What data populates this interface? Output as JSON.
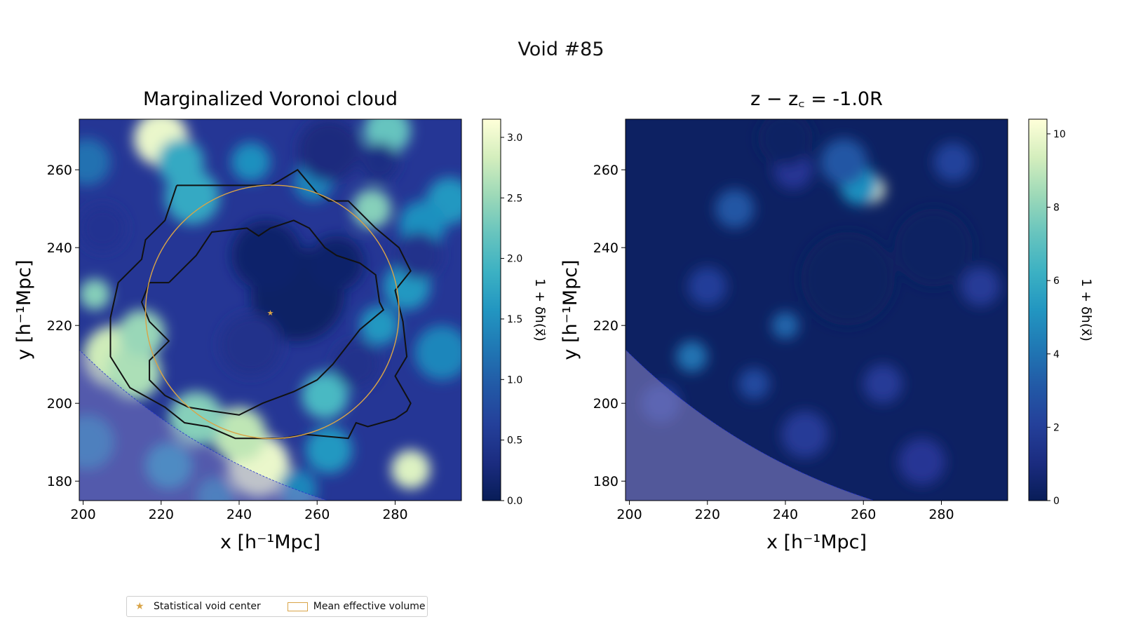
{
  "figure": {
    "suptitle": "Void #85"
  },
  "colors": {
    "contour": "#111111",
    "circle": "#d9a447",
    "center_star": "#d9a447",
    "boundary_dashed": "#2233cc",
    "colormap": "YlGnBu_r"
  },
  "chart_data": [
    {
      "type": "heatmap",
      "title": "Marginalized Voronoi cloud",
      "xlabel": "x [h⁻¹Mpc]",
      "ylabel": "y [h⁻¹Mpc]",
      "xlim": [
        199,
        297
      ],
      "ylim": [
        175,
        273
      ],
      "xticks": [
        200,
        220,
        240,
        260,
        280
      ],
      "yticks": [
        180,
        200,
        220,
        240,
        260
      ],
      "xtick_labels": [
        "200",
        "220",
        "240",
        "260",
        "280"
      ],
      "ytick_labels": [
        "180",
        "200",
        "220",
        "240",
        "260"
      ],
      "colorbar": {
        "label": "1 + δh(x⃗)",
        "range": [
          0.0,
          3.15
        ],
        "ticks": [
          0.0,
          0.5,
          1.0,
          1.5,
          2.0,
          2.5,
          3.0
        ],
        "tick_labels": [
          "0.0",
          "0.5",
          "1.0",
          "1.5",
          "2.0",
          "2.5",
          "3.0"
        ]
      },
      "features": [
        {
          "x": 220,
          "y": 268,
          "value": 3.0,
          "r": 7
        },
        {
          "x": 208,
          "y": 212,
          "value": 2.8,
          "r": 8
        },
        {
          "x": 213,
          "y": 208,
          "value": 2.6,
          "r": 7
        },
        {
          "x": 215,
          "y": 218,
          "value": 2.5,
          "r": 6
        },
        {
          "x": 203,
          "y": 228,
          "value": 2.4,
          "r": 4
        },
        {
          "x": 245,
          "y": 184,
          "value": 3.0,
          "r": 8
        },
        {
          "x": 240,
          "y": 192,
          "value": 2.7,
          "r": 7
        },
        {
          "x": 229,
          "y": 196,
          "value": 2.4,
          "r": 7
        },
        {
          "x": 284,
          "y": 183,
          "value": 2.9,
          "r": 5
        },
        {
          "x": 274,
          "y": 250,
          "value": 2.4,
          "r": 5
        },
        {
          "x": 278,
          "y": 270,
          "value": 2.2,
          "r": 6
        },
        {
          "x": 262,
          "y": 202,
          "value": 2.0,
          "r": 6
        },
        {
          "x": 228,
          "y": 253,
          "value": 1.8,
          "r": 7
        },
        {
          "x": 225,
          "y": 262,
          "value": 1.8,
          "r": 6
        },
        {
          "x": 283,
          "y": 230,
          "value": 1.6,
          "r": 6
        },
        {
          "x": 292,
          "y": 213,
          "value": 1.4,
          "r": 7
        },
        {
          "x": 294,
          "y": 252,
          "value": 1.6,
          "r": 6
        },
        {
          "x": 287,
          "y": 246,
          "value": 1.5,
          "r": 6
        },
        {
          "x": 259,
          "y": 257,
          "value": 1.4,
          "r": 5
        },
        {
          "x": 276,
          "y": 220,
          "value": 1.6,
          "r": 5
        },
        {
          "x": 201,
          "y": 190,
          "value": 1.3,
          "r": 7
        },
        {
          "x": 222,
          "y": 184,
          "value": 1.5,
          "r": 6
        },
        {
          "x": 263,
          "y": 188,
          "value": 1.6,
          "r": 6
        },
        {
          "x": 243,
          "y": 262,
          "value": 1.5,
          "r": 5
        },
        {
          "x": 201,
          "y": 262,
          "value": 1.2,
          "r": 6
        },
        {
          "x": 255,
          "y": 178,
          "value": 1.4,
          "r": 5
        },
        {
          "x": 234,
          "y": 176,
          "value": 1.3,
          "r": 5
        },
        {
          "x": 255,
          "y": 228,
          "value": 0.1,
          "r": 12
        },
        {
          "x": 247,
          "y": 238,
          "value": 0.15,
          "r": 9
        },
        {
          "x": 265,
          "y": 236,
          "value": 0.15,
          "r": 7
        },
        {
          "x": 263,
          "y": 265,
          "value": 0.3,
          "r": 8
        },
        {
          "x": 276,
          "y": 262,
          "value": 0.35,
          "r": 5
        },
        {
          "x": 243,
          "y": 215,
          "value": 0.4,
          "r": 8
        },
        {
          "x": 270,
          "y": 210,
          "value": 0.4,
          "r": 6
        },
        {
          "x": 286,
          "y": 238,
          "value": 0.4,
          "r": 6
        },
        {
          "x": 205,
          "y": 245,
          "value": 0.45,
          "r": 6
        }
      ],
      "inner_contour": [
        [
          222,
          231
        ],
        [
          229,
          238
        ],
        [
          233,
          244
        ],
        [
          242,
          245
        ],
        [
          245,
          243
        ],
        [
          248,
          245
        ],
        [
          254,
          247
        ],
        [
          258,
          245
        ],
        [
          262,
          240
        ],
        [
          265,
          238
        ],
        [
          271,
          236
        ],
        [
          275,
          233
        ],
        [
          276,
          226
        ],
        [
          277,
          224
        ],
        [
          271,
          219
        ],
        [
          264,
          210
        ],
        [
          260,
          206
        ],
        [
          254,
          203
        ],
        [
          246,
          200
        ],
        [
          240,
          197
        ],
        [
          233,
          198
        ],
        [
          227,
          199
        ],
        [
          221,
          202
        ],
        [
          217,
          206
        ],
        [
          217,
          211
        ],
        [
          222,
          216
        ],
        [
          217,
          221
        ],
        [
          215,
          226
        ],
        [
          217,
          231
        ],
        [
          222,
          231
        ]
      ],
      "outer_contour": [
        [
          224,
          256
        ],
        [
          228,
          256
        ],
        [
          236,
          256
        ],
        [
          248,
          256
        ],
        [
          250,
          257
        ],
        [
          255,
          260
        ],
        [
          260,
          254
        ],
        [
          263,
          252
        ],
        [
          268,
          252
        ],
        [
          275,
          245
        ],
        [
          281,
          240
        ],
        [
          284,
          234
        ],
        [
          280,
          229
        ],
        [
          282,
          221
        ],
        [
          283,
          212
        ],
        [
          280,
          207
        ],
        [
          284,
          200
        ],
        [
          283,
          198
        ],
        [
          280,
          196
        ],
        [
          273,
          194
        ],
        [
          270,
          195
        ],
        [
          268,
          191
        ],
        [
          257,
          192
        ],
        [
          251,
          191
        ],
        [
          239,
          191
        ],
        [
          232,
          194
        ],
        [
          226,
          195
        ],
        [
          221,
          199
        ],
        [
          212,
          204
        ],
        [
          207,
          212
        ],
        [
          207,
          222
        ],
        [
          209,
          231
        ],
        [
          215,
          237
        ],
        [
          216,
          242
        ],
        [
          221,
          247
        ],
        [
          224,
          256
        ]
      ],
      "circle": {
        "cx": 248.5,
        "cy": 223.5,
        "r": 32.5
      },
      "center": {
        "x": 248,
        "y": 223.5
      },
      "boundary_circle": {
        "cx": 310,
        "cy": 325,
        "r": 157
      }
    },
    {
      "type": "heatmap",
      "title": "z − z꜀ = -1.0R",
      "xlabel": "x [h⁻¹Mpc]",
      "ylabel": "y [h⁻¹Mpc]",
      "xlim": [
        199,
        297
      ],
      "ylim": [
        175,
        273
      ],
      "xticks": [
        200,
        220,
        240,
        260,
        280
      ],
      "yticks": [
        180,
        200,
        220,
        240,
        260
      ],
      "xtick_labels": [
        "200",
        "220",
        "240",
        "260",
        "280"
      ],
      "ytick_labels": [
        "180",
        "200",
        "220",
        "240",
        "260"
      ],
      "colorbar": {
        "label": "1 + δh(x⃗)",
        "range": [
          0,
          10.4
        ],
        "ticks": [
          0,
          2,
          4,
          6,
          8,
          10
        ],
        "tick_labels": [
          "0",
          "2",
          "4",
          "6",
          "8",
          "10"
        ]
      },
      "features": [
        {
          "x": 262,
          "y": 255,
          "value": 10.0,
          "r": 3.5
        },
        {
          "x": 259,
          "y": 256,
          "value": 5.0,
          "r": 5
        },
        {
          "x": 255,
          "y": 262,
          "value": 3.0,
          "r": 6
        },
        {
          "x": 227,
          "y": 250,
          "value": 3.0,
          "r": 5
        },
        {
          "x": 216,
          "y": 212,
          "value": 4.0,
          "r": 4
        },
        {
          "x": 240,
          "y": 220,
          "value": 3.6,
          "r": 3.5
        },
        {
          "x": 232,
          "y": 205,
          "value": 2.5,
          "r": 4
        },
        {
          "x": 220,
          "y": 230,
          "value": 2.0,
          "r": 5
        },
        {
          "x": 208,
          "y": 200,
          "value": 2.0,
          "r": 5
        },
        {
          "x": 245,
          "y": 192,
          "value": 1.8,
          "r": 6
        },
        {
          "x": 275,
          "y": 185,
          "value": 1.6,
          "r": 6
        },
        {
          "x": 265,
          "y": 205,
          "value": 1.8,
          "r": 5
        },
        {
          "x": 283,
          "y": 262,
          "value": 2.2,
          "r": 5
        },
        {
          "x": 242,
          "y": 260,
          "value": 1.6,
          "r": 5
        },
        {
          "x": 290,
          "y": 230,
          "value": 1.8,
          "r": 5
        },
        {
          "x": 256,
          "y": 232,
          "value": 0.2,
          "r": 12
        },
        {
          "x": 278,
          "y": 240,
          "value": 0.25,
          "r": 10
        },
        {
          "x": 240,
          "y": 268,
          "value": 0.3,
          "r": 7
        }
      ],
      "boundary_circle": {
        "cx": 310,
        "cy": 325,
        "r": 157
      }
    }
  ],
  "legend": {
    "items": [
      {
        "label": "Statistical void center"
      },
      {
        "label": "Mean effective volume"
      }
    ]
  }
}
